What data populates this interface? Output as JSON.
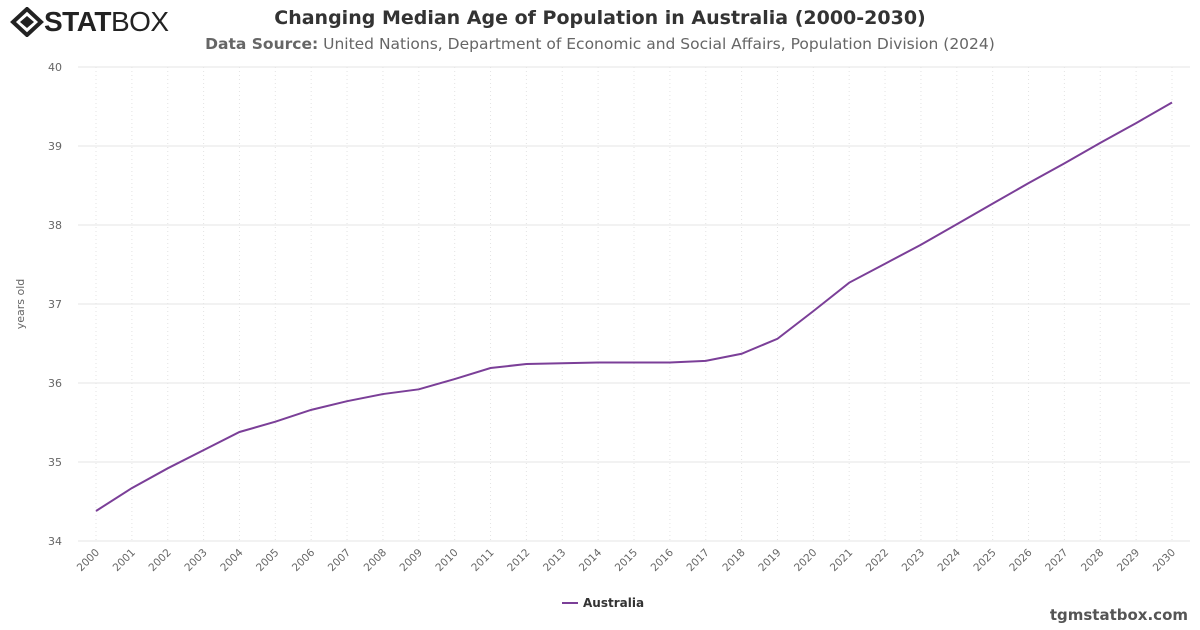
{
  "logo": {
    "text_bold": "STAT",
    "text_light": "BOX"
  },
  "header": {
    "title": "Changing Median Age of Population in Australia (2000-2030)",
    "source_label": "Data Source:",
    "source_text": "United Nations, Department of Economic and Social Affairs, Population Division (2024)"
  },
  "footer": {
    "site": "tgmstatbox.com"
  },
  "chart_data": {
    "type": "line",
    "title": "Changing Median Age of Population in Australia (2000-2030)",
    "xlabel": "",
    "ylabel": "years old",
    "ylim": [
      34,
      40
    ],
    "yticks": [
      "34",
      "35",
      "36",
      "37",
      "38",
      "39",
      "40"
    ],
    "grid": true,
    "legend": "bottom-center",
    "categories": [
      "2000",
      "2001",
      "2002",
      "2003",
      "2004",
      "2005",
      "2006",
      "2007",
      "2008",
      "2009",
      "2010",
      "2011",
      "2012",
      "2013",
      "2014",
      "2015",
      "2016",
      "2017",
      "2018",
      "2019",
      "2020",
      "2021",
      "2022",
      "2023",
      "2024",
      "2025",
      "2026",
      "2027",
      "2028",
      "2029",
      "2030"
    ],
    "series": [
      {
        "name": "Australia",
        "color": "#7b3f98",
        "values": [
          34.38,
          34.67,
          34.92,
          35.15,
          35.38,
          35.51,
          35.66,
          35.77,
          35.86,
          35.92,
          36.05,
          36.19,
          36.24,
          36.25,
          36.26,
          36.26,
          36.26,
          36.28,
          36.37,
          36.56,
          36.91,
          37.27,
          37.51,
          37.75,
          38.01,
          38.27,
          38.53,
          38.78,
          39.04,
          39.29,
          39.55
        ]
      }
    ]
  }
}
